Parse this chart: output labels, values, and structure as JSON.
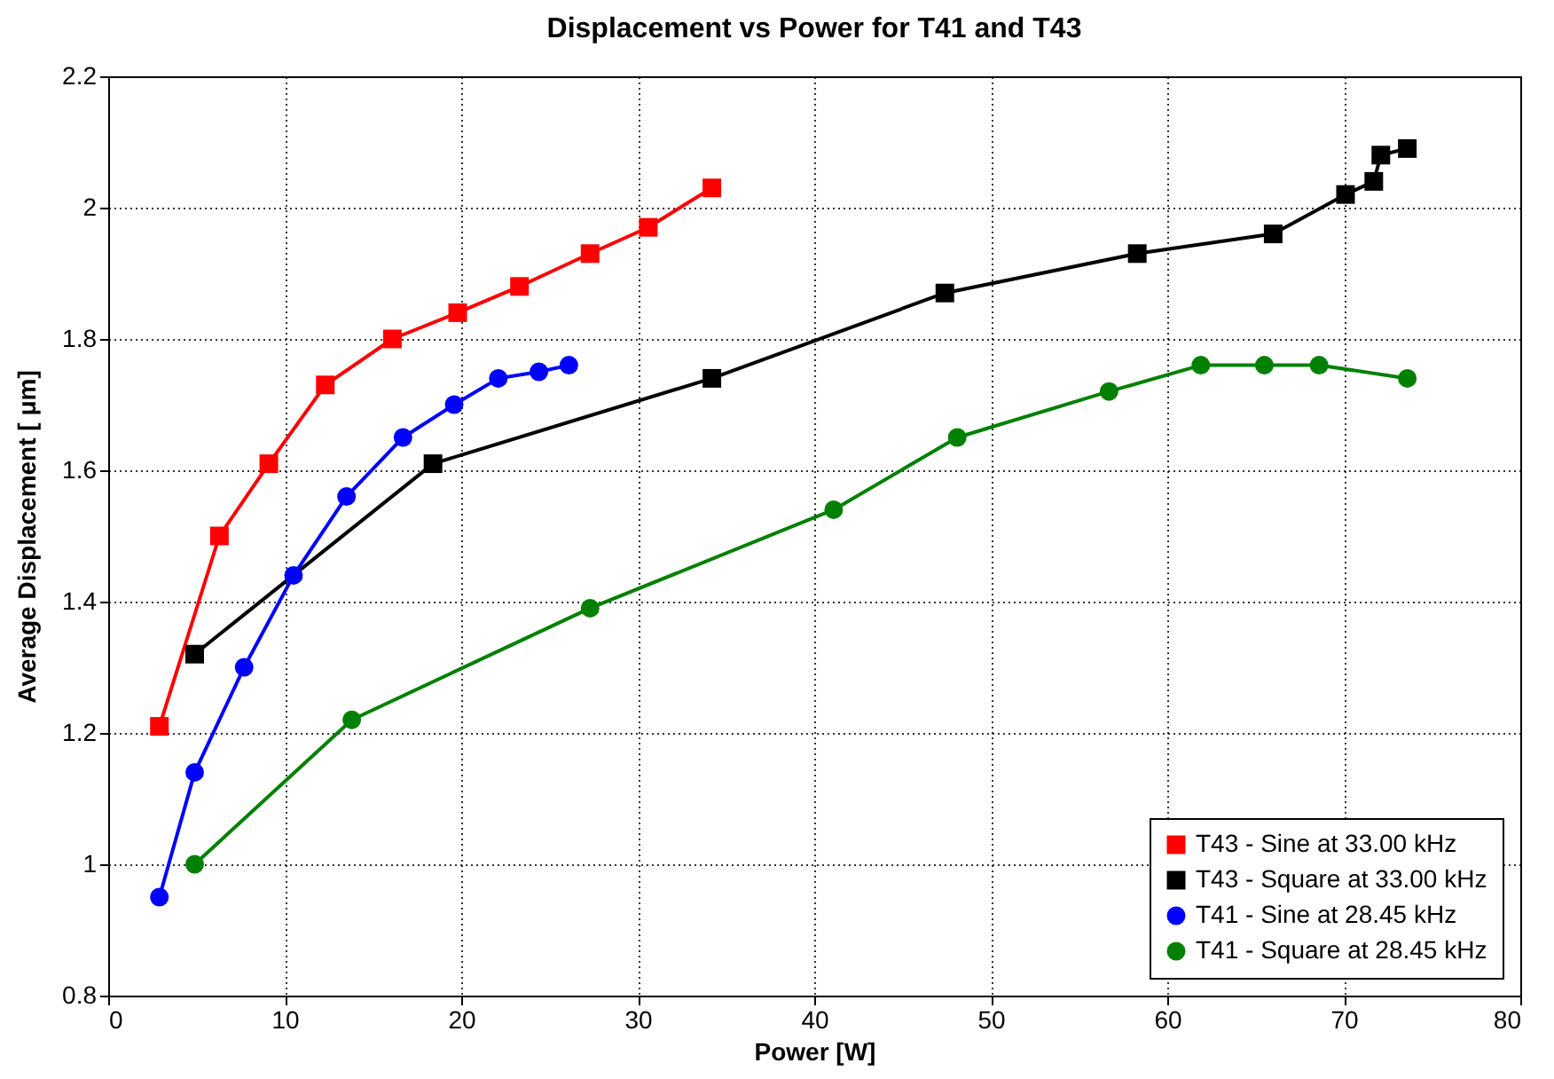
{
  "chart_data": {
    "type": "line",
    "title": "Displacement vs Power for T41 and T43",
    "xlabel": "Power [W]",
    "ylabel": "Average Displacement [ μm]",
    "xlim": [
      0,
      80
    ],
    "xticks": [
      0,
      10,
      20,
      30,
      40,
      50,
      60,
      70,
      80
    ],
    "ylim": [
      0.8,
      2.2
    ],
    "yticks": [
      0.8,
      1,
      1.2,
      1.4,
      1.6,
      1.8,
      2,
      2.2
    ],
    "grid": true,
    "legend": "bottom right",
    "line_style": "solid",
    "series": [
      {
        "name": "T43 - Sine at 33.00 kHz",
        "color": "#ff0000",
        "marker": "square",
        "x": [
          2.9,
          6.3,
          9.1,
          12.3,
          16.1,
          19.8,
          23.3,
          27.3,
          30.6,
          34.2
        ],
        "values": [
          1.21,
          1.5,
          1.61,
          1.73,
          1.8,
          1.84,
          1.88,
          1.93,
          1.97,
          2.03
        ]
      },
      {
        "name": "T43 - Square at 33.00 kHz",
        "color": "#000000",
        "marker": "square",
        "x": [
          4.9,
          18.4,
          34.2,
          47.4,
          58.3,
          66.0,
          70.1,
          71.7,
          72.1,
          73.6
        ],
        "values": [
          1.32,
          1.61,
          1.74,
          1.87,
          1.93,
          1.96,
          2.02,
          2.04,
          2.08,
          2.09
        ]
      },
      {
        "name": "T41 - Sine at 28.45 kHz",
        "color": "#0000ff",
        "marker": "circle",
        "x": [
          2.9,
          4.9,
          7.7,
          10.5,
          13.5,
          16.7,
          19.6,
          22.1,
          24.4,
          26.1
        ],
        "values": [
          0.95,
          1.14,
          1.3,
          1.44,
          1.56,
          1.65,
          1.7,
          1.74,
          1.75,
          1.76
        ]
      },
      {
        "name": "T41 - Square at 28.45 kHz",
        "color": "#008000",
        "marker": "circle",
        "x": [
          4.9,
          13.8,
          27.3,
          41.1,
          48.1,
          56.7,
          61.9,
          65.5,
          68.6,
          73.6
        ],
        "values": [
          1.0,
          1.22,
          1.39,
          1.54,
          1.65,
          1.72,
          1.76,
          1.76,
          1.76,
          1.74
        ]
      }
    ]
  }
}
